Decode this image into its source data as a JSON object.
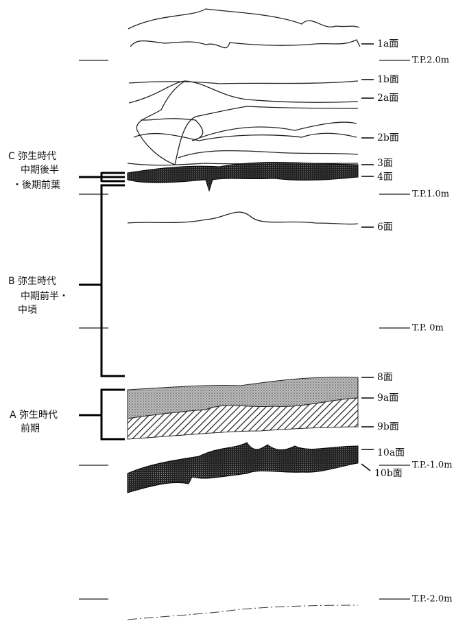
{
  "surfaces": [
    {
      "label": "1a面"
    },
    {
      "label": "1b面"
    },
    {
      "label": "2a面"
    },
    {
      "label": "2b面"
    },
    {
      "label": "3面"
    },
    {
      "label": "4面"
    },
    {
      "label": "6面"
    },
    {
      "label": "8面"
    },
    {
      "label": "9a面"
    },
    {
      "label": "9b面"
    },
    {
      "label": "10a面"
    },
    {
      "label": "10b面"
    }
  ],
  "elevations": [
    {
      "label": "T.P.2.0m"
    },
    {
      "label": "T.P.1.0m"
    },
    {
      "label": "T.P. 0m"
    },
    {
      "label": "T.P.-1.0m"
    },
    {
      "label": "T.P.-2.0m"
    }
  ],
  "periods": [
    {
      "lines": [
        "C 弥生時代",
        "中期後半",
        "・後期前葉"
      ]
    },
    {
      "lines": [
        "B 弥生時代",
        "中期前半・",
        "中頃"
      ]
    },
    {
      "lines": [
        "A 弥生時代",
        "前期"
      ]
    }
  ]
}
